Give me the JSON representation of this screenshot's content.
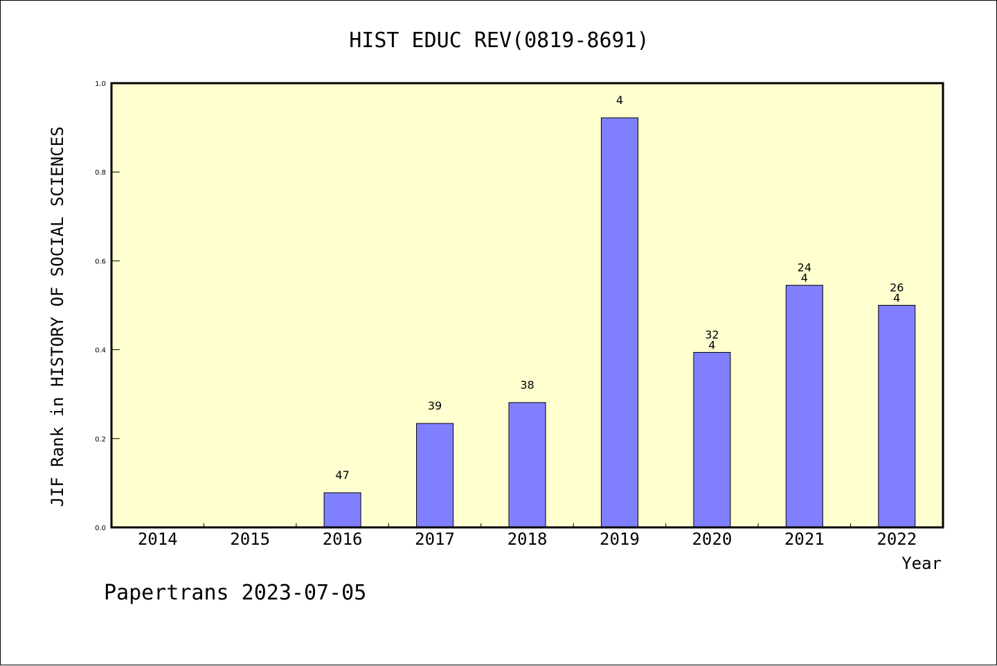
{
  "chart_data": {
    "type": "bar",
    "title": "HIST EDUC REV(0819-8691)",
    "xlabel": "Year",
    "ylabel": "JIF Rank in HISTORY OF SOCIAL SCIENCES",
    "categories": [
      "2014",
      "2015",
      "2016",
      "2017",
      "2018",
      "2019",
      "2020",
      "2021",
      "2022"
    ],
    "values": [
      null,
      null,
      0.078,
      0.234,
      0.281,
      0.922,
      0.394,
      0.545,
      0.5
    ],
    "bar_labels": [
      [],
      [],
      [
        "47"
      ],
      [
        "39"
      ],
      [
        "38"
      ],
      [
        "4"
      ],
      [
        "32",
        "4"
      ],
      [
        "24",
        "4"
      ],
      [
        "26",
        "4"
      ]
    ],
    "ylim": [
      0,
      1.0
    ],
    "yticks": [
      "0.0",
      "0.2",
      "0.4",
      "0.6",
      "0.8",
      "1.0"
    ],
    "ytick_values": [
      0,
      0.2,
      0.4,
      0.6,
      0.8,
      1.0
    ],
    "grid": false,
    "colors": {
      "plot_background": "#ffffd0",
      "bar_fill": "#8080ff",
      "bar_stroke": "#000000"
    }
  },
  "footer": "Papertrans 2023-07-05"
}
